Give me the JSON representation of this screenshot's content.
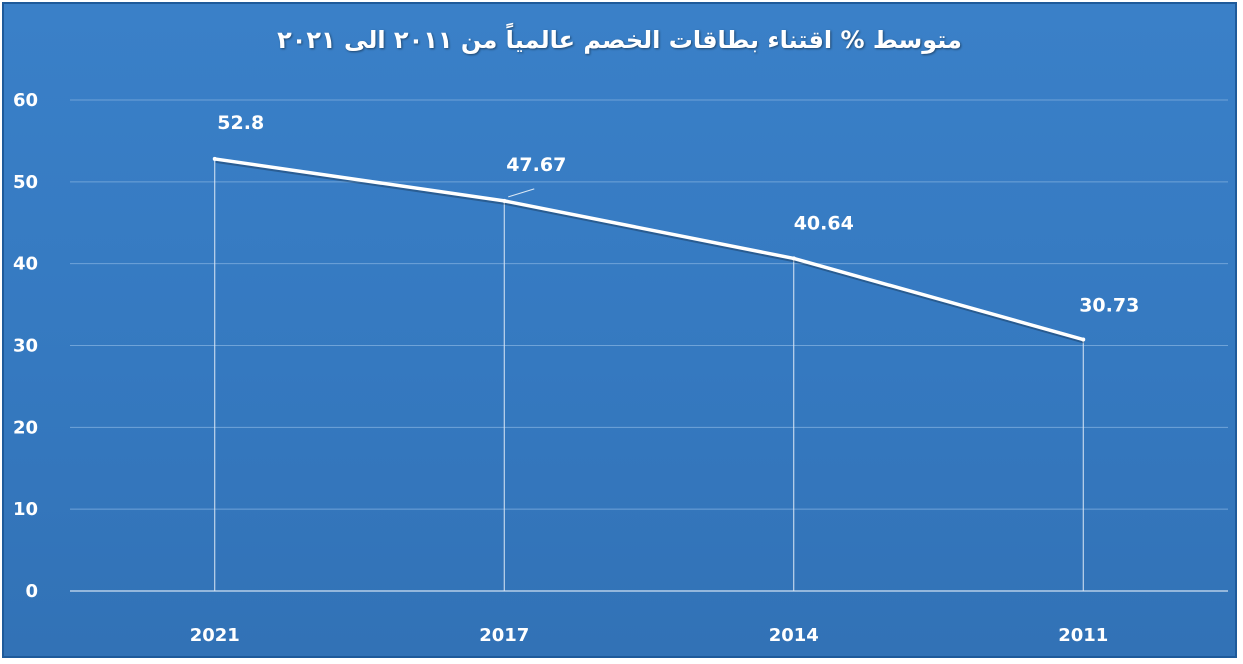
{
  "chart_data": {
    "type": "line",
    "title": "متوسط % اقتناء بطاقات الخصم عالمياً  من ٢٠١١ الى ٢٠٢١",
    "categories": [
      "2021",
      "2017",
      "2014",
      "2011"
    ],
    "series": [
      {
        "values": [
          52.8,
          47.67,
          40.64,
          30.73
        ]
      }
    ],
    "data_labels": [
      "52.8",
      "47.67",
      "40.64",
      "30.73"
    ],
    "y_ticks": [
      0,
      10,
      20,
      30,
      40,
      50,
      60
    ],
    "ylim": [
      0,
      60
    ],
    "xlabel": "",
    "ylabel": "",
    "grid": true,
    "drop_lines": true,
    "legend": "none",
    "colors": {
      "background": "#3579c0",
      "line": "#ffffff",
      "grid": "#6fa3d8",
      "text": "#ffffff"
    }
  }
}
